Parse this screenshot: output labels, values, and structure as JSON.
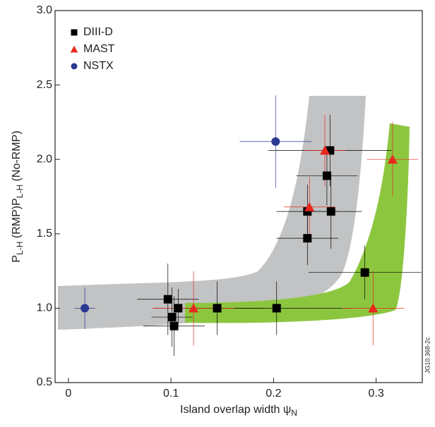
{
  "chart_data": {
    "type": "scatter",
    "xlabel": [
      "Island overlap width ψ",
      "N"
    ],
    "ylabel": [
      "P",
      "L-H",
      " (RMP)P",
      "L-H",
      " (No-RMP)"
    ],
    "side_label": "JG10.368-2c",
    "xlim": [
      -0.013,
      0.345
    ],
    "ylim": [
      0.5,
      3.0
    ],
    "xticks": [
      0,
      0.1,
      0.2,
      0.3
    ],
    "yticks": [
      {
        "value": 0.5,
        "label": "0.5"
      },
      {
        "value": 1,
        "label": "1.0"
      },
      1.5,
      {
        "value": 2,
        "label": "2.0"
      },
      2.5,
      {
        "value": 3,
        "label": "3.0"
      }
    ],
    "series": [
      {
        "name": "DIII-D",
        "color": "#000000",
        "marker": "square",
        "x": [
          0.097,
          0.107,
          0.101,
          0.103,
          0.145,
          0.203,
          0.233,
          0.233,
          0.252,
          0.256,
          0.255,
          0.289
        ],
        "values": [
          1.06,
          1.0,
          0.94,
          0.88,
          1.0,
          1.0,
          1.65,
          1.47,
          1.89,
          1.65,
          2.06,
          1.24
        ],
        "xerr": [
          0.03,
          0.025,
          0.02,
          0.03,
          0.045,
          0.075,
          0.03,
          0.03,
          0.03,
          0.03,
          0.06,
          0.055
        ],
        "yerr": [
          0.24,
          0.13,
          0.2,
          0.2,
          0.18,
          0.18,
          0.18,
          0.18,
          0.2,
          0.25,
          0.24,
          0.18
        ]
      },
      {
        "name": "MAST",
        "color": "#e8281e",
        "marker": "triangle",
        "x": [
          0.122,
          0.235,
          0.25,
          0.316,
          0.297
        ],
        "values": [
          1.0,
          1.68,
          2.06,
          2.0,
          1.0
        ],
        "xerr": [
          0.04,
          0.025,
          0.02,
          0.025,
          0.03
        ],
        "yerr": [
          0.25,
          0.2,
          0.24,
          0.25,
          0.25
        ]
      },
      {
        "name": "NSTX",
        "color": "#2b3990",
        "marker": "circle",
        "x": [
          0.016,
          0.202
        ],
        "values": [
          1.0,
          2.12
        ],
        "xerr": [
          0.01,
          0.035
        ],
        "yerr": [
          0.14,
          0.31
        ]
      }
    ]
  }
}
